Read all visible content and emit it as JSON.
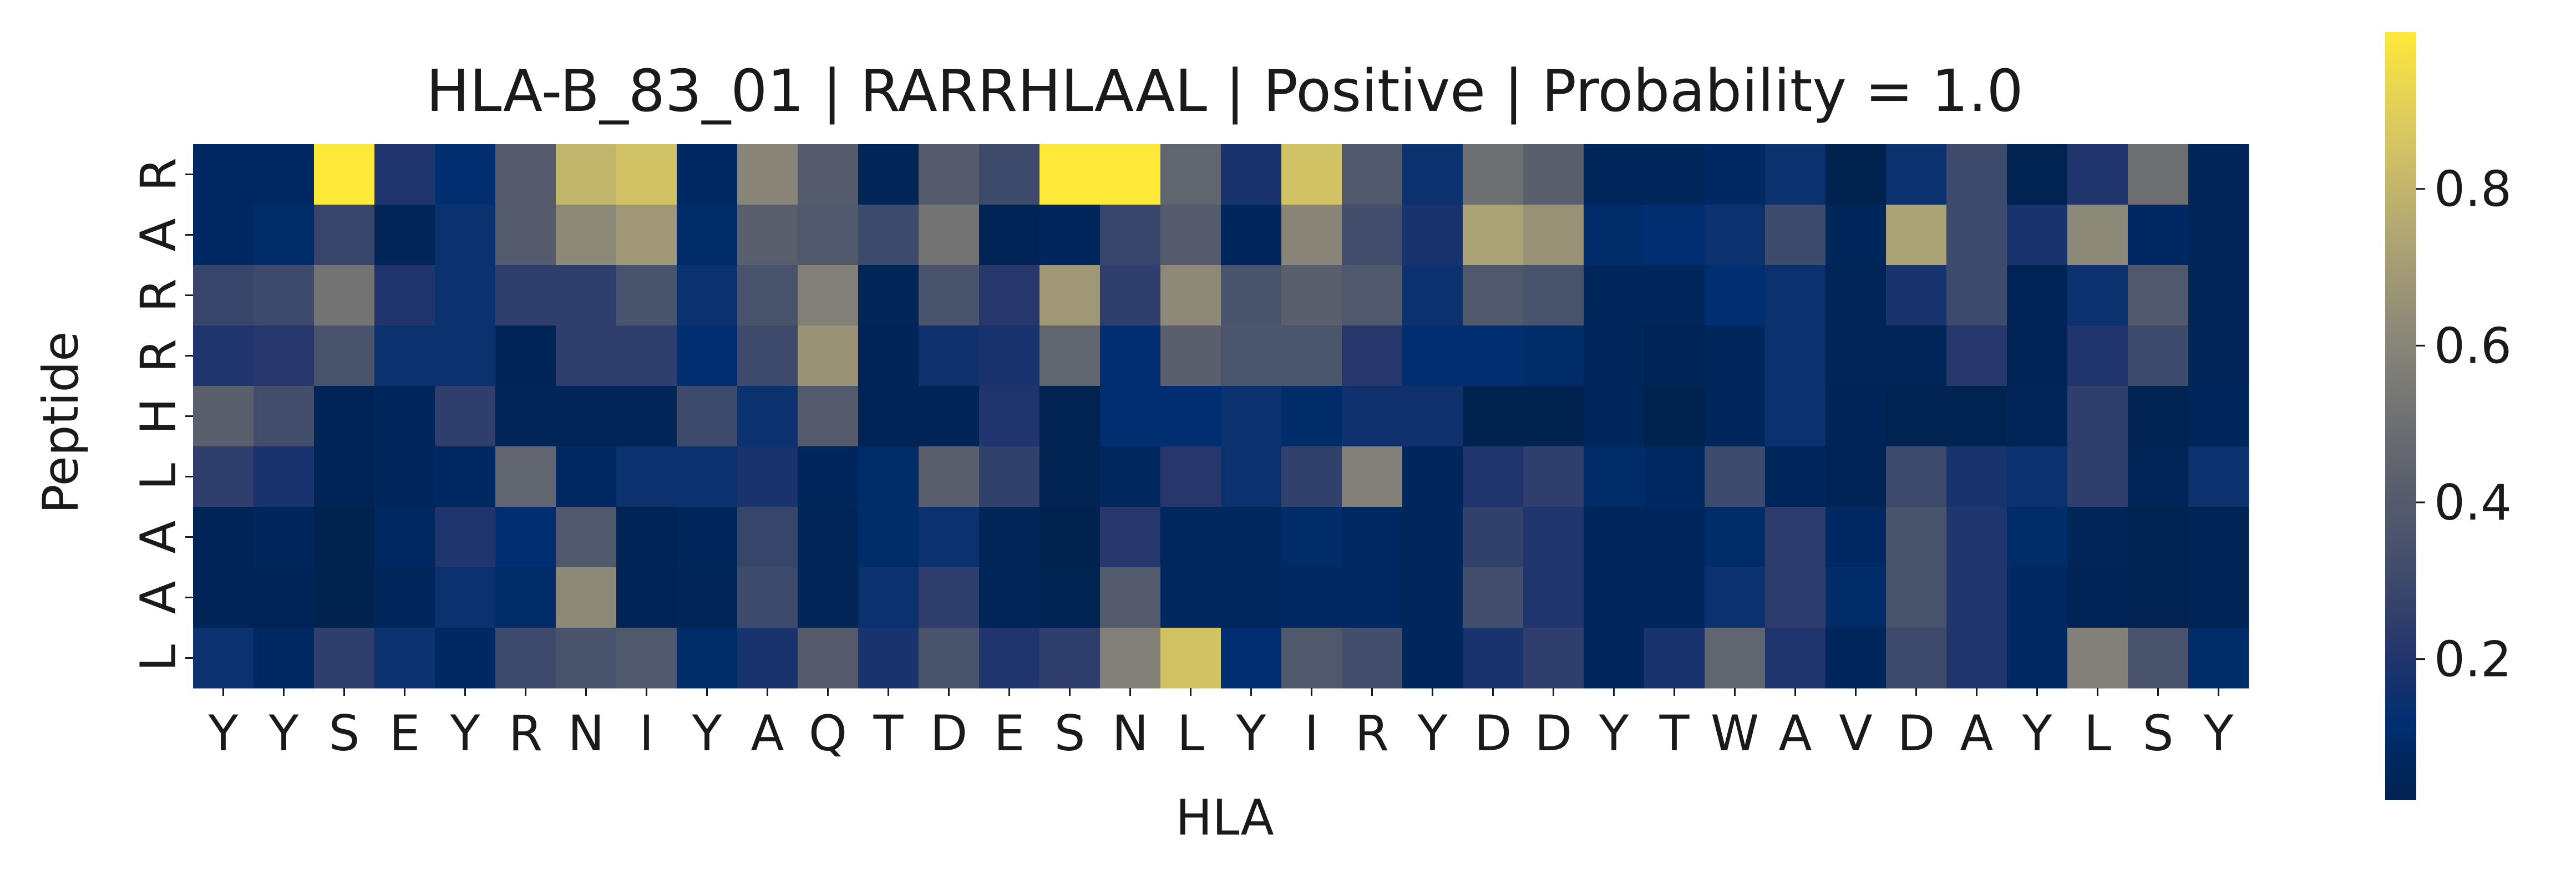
{
  "chart_data": {
    "type": "heatmap",
    "title": "HLA-B_83_01 | RARRHLAAL | Positive | Probability = 1.0",
    "xlabel": "HLA",
    "ylabel": "Peptide",
    "x_categories": [
      "Y",
      "Y",
      "S",
      "E",
      "Y",
      "R",
      "N",
      "I",
      "Y",
      "A",
      "Q",
      "T",
      "D",
      "E",
      "S",
      "N",
      "L",
      "Y",
      "I",
      "R",
      "Y",
      "D",
      "D",
      "Y",
      "T",
      "W",
      "A",
      "V",
      "D",
      "A",
      "Y",
      "L",
      "S",
      "Y"
    ],
    "y_categories": [
      "R",
      "A",
      "R",
      "R",
      "H",
      "L",
      "A",
      "A",
      "L"
    ],
    "colorbar": {
      "colormap": "cividis",
      "ticks": [
        0.2,
        0.4,
        0.6,
        0.8
      ],
      "tick_labels": [
        "0.2",
        "0.4",
        "0.6",
        "0.8"
      ],
      "vmin": 0.02,
      "vmax": 1.0
    },
    "values": [
      [
        0.08,
        0.08,
        1.0,
        0.2,
        0.12,
        0.4,
        0.8,
        0.85,
        0.08,
        0.6,
        0.4,
        0.05,
        0.4,
        0.3,
        1.0,
        1.0,
        0.45,
        0.18,
        0.85,
        0.38,
        0.15,
        0.5,
        0.42,
        0.06,
        0.06,
        0.08,
        0.15,
        0.02,
        0.15,
        0.3,
        0.03,
        0.2,
        0.5,
        0.05
      ],
      [
        0.08,
        0.1,
        0.28,
        0.05,
        0.15,
        0.4,
        0.62,
        0.68,
        0.1,
        0.42,
        0.38,
        0.3,
        0.52,
        0.04,
        0.06,
        0.28,
        0.4,
        0.06,
        0.6,
        0.32,
        0.18,
        0.72,
        0.66,
        0.1,
        0.12,
        0.15,
        0.3,
        0.06,
        0.72,
        0.3,
        0.18,
        0.62,
        0.08,
        0.05
      ],
      [
        0.28,
        0.3,
        0.52,
        0.2,
        0.15,
        0.25,
        0.25,
        0.35,
        0.15,
        0.35,
        0.58,
        0.05,
        0.35,
        0.22,
        0.68,
        0.25,
        0.62,
        0.35,
        0.42,
        0.38,
        0.15,
        0.38,
        0.35,
        0.06,
        0.06,
        0.12,
        0.15,
        0.05,
        0.18,
        0.3,
        0.04,
        0.15,
        0.38,
        0.05
      ],
      [
        0.2,
        0.22,
        0.35,
        0.15,
        0.15,
        0.04,
        0.25,
        0.25,
        0.12,
        0.3,
        0.66,
        0.04,
        0.16,
        0.18,
        0.45,
        0.12,
        0.42,
        0.36,
        0.36,
        0.22,
        0.12,
        0.12,
        0.1,
        0.06,
        0.04,
        0.06,
        0.15,
        0.05,
        0.05,
        0.22,
        0.04,
        0.2,
        0.3,
        0.05
      ],
      [
        0.42,
        0.32,
        0.04,
        0.06,
        0.25,
        0.05,
        0.05,
        0.05,
        0.3,
        0.15,
        0.4,
        0.04,
        0.04,
        0.2,
        0.03,
        0.12,
        0.12,
        0.15,
        0.1,
        0.16,
        0.16,
        0.02,
        0.02,
        0.06,
        0.01,
        0.06,
        0.15,
        0.04,
        0.03,
        0.03,
        0.05,
        0.25,
        0.03,
        0.06
      ],
      [
        0.25,
        0.18,
        0.04,
        0.06,
        0.08,
        0.45,
        0.08,
        0.15,
        0.15,
        0.18,
        0.06,
        0.1,
        0.42,
        0.26,
        0.03,
        0.07,
        0.22,
        0.15,
        0.26,
        0.58,
        0.06,
        0.2,
        0.25,
        0.1,
        0.08,
        0.3,
        0.06,
        0.04,
        0.3,
        0.18,
        0.15,
        0.25,
        0.05,
        0.15
      ],
      [
        0.04,
        0.06,
        0.02,
        0.08,
        0.2,
        0.12,
        0.38,
        0.04,
        0.06,
        0.28,
        0.05,
        0.1,
        0.15,
        0.05,
        0.02,
        0.22,
        0.07,
        0.07,
        0.1,
        0.08,
        0.06,
        0.26,
        0.2,
        0.06,
        0.06,
        0.1,
        0.24,
        0.08,
        0.35,
        0.2,
        0.1,
        0.05,
        0.03,
        0.04
      ],
      [
        0.04,
        0.04,
        0.02,
        0.06,
        0.15,
        0.1,
        0.62,
        0.04,
        0.05,
        0.3,
        0.05,
        0.15,
        0.25,
        0.05,
        0.03,
        0.4,
        0.07,
        0.07,
        0.08,
        0.08,
        0.06,
        0.32,
        0.2,
        0.06,
        0.06,
        0.15,
        0.24,
        0.1,
        0.35,
        0.2,
        0.08,
        0.04,
        0.03,
        0.04
      ],
      [
        0.15,
        0.08,
        0.25,
        0.15,
        0.08,
        0.3,
        0.35,
        0.38,
        0.1,
        0.18,
        0.4,
        0.18,
        0.35,
        0.2,
        0.25,
        0.58,
        0.85,
        0.12,
        0.38,
        0.32,
        0.06,
        0.18,
        0.25,
        0.06,
        0.18,
        0.45,
        0.2,
        0.06,
        0.3,
        0.2,
        0.08,
        0.58,
        0.35,
        0.1
      ]
    ]
  }
}
